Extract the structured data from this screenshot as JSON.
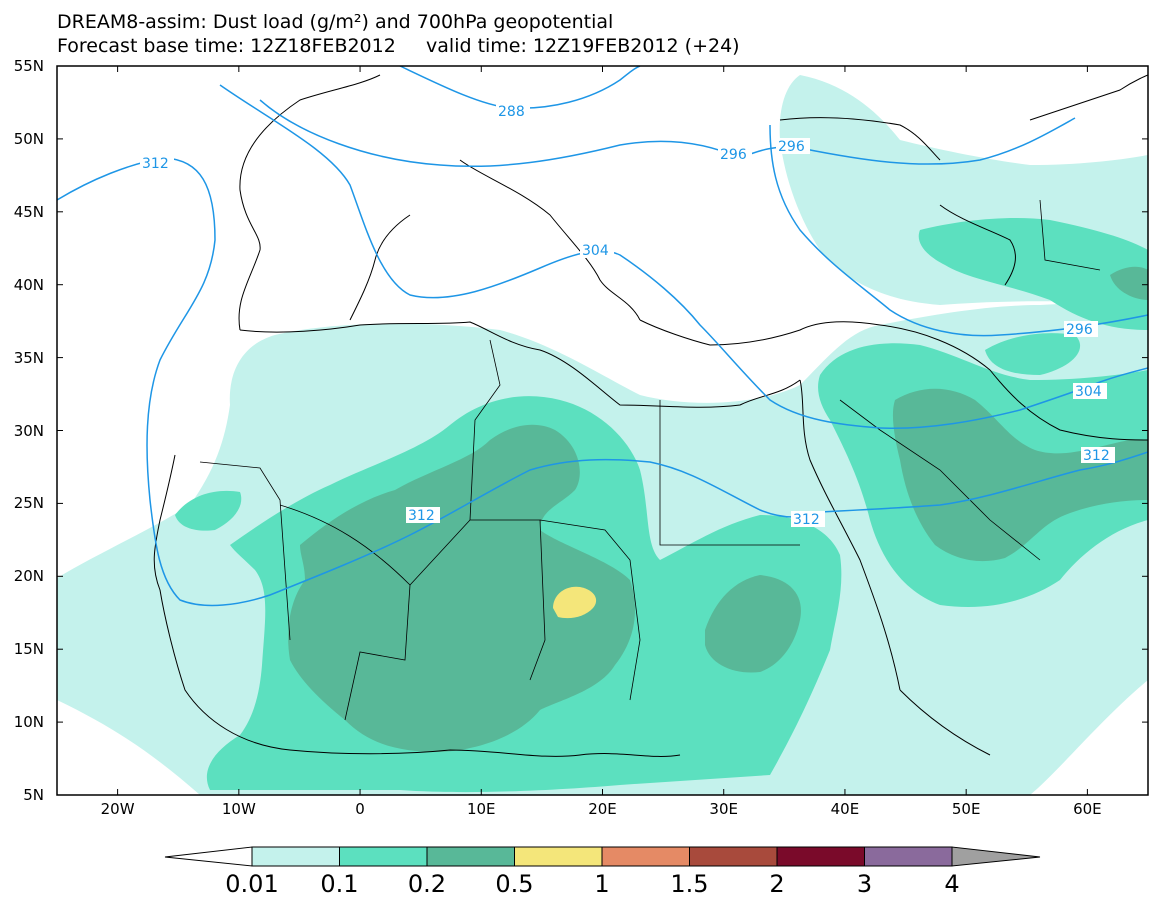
{
  "header": {
    "line1": "DREAM8-assim: Dust load (g/m²) and 700hPa geopotential",
    "line2": "Forecast base time: 12Z18FEB2012     valid time: 12Z19FEB2012 (+24)"
  },
  "axes": {
    "lat_labels": [
      "55N",
      "50N",
      "45N",
      "40N",
      "35N",
      "30N",
      "25N",
      "20N",
      "15N",
      "10N",
      "5N"
    ],
    "lon_labels": [
      "20W",
      "10W",
      "0",
      "10E",
      "20E",
      "30E",
      "40E",
      "50E",
      "60E"
    ],
    "lat_range": [
      5,
      55
    ],
    "lon_range": [
      -25,
      65
    ]
  },
  "contours": {
    "unit_note": "700hPa geopotential (dam)",
    "labels": [
      "288",
      "296",
      "296",
      "304",
      "296",
      "304",
      "312",
      "312",
      "312",
      "312"
    ]
  },
  "colorbar": {
    "labels": [
      "0.01",
      "0.1",
      "0.2",
      "0.5",
      "1",
      "1.5",
      "2",
      "3",
      "4"
    ],
    "colors": [
      "#c4f2ec",
      "#5ce0bf",
      "#58b898",
      "#f4e67a",
      "#e58a65",
      "#a84a3c",
      "#7a0a2a",
      "#8a6a9c",
      "#a0a0a0"
    ]
  },
  "colors": {
    "contour_line": "#1e96e6",
    "coast": "#000000",
    "dust_low": "#c4f2ec",
    "dust_mid": "#5ce0bf",
    "dust_high": "#58b898",
    "dust_peak": "#f4e67a"
  }
}
